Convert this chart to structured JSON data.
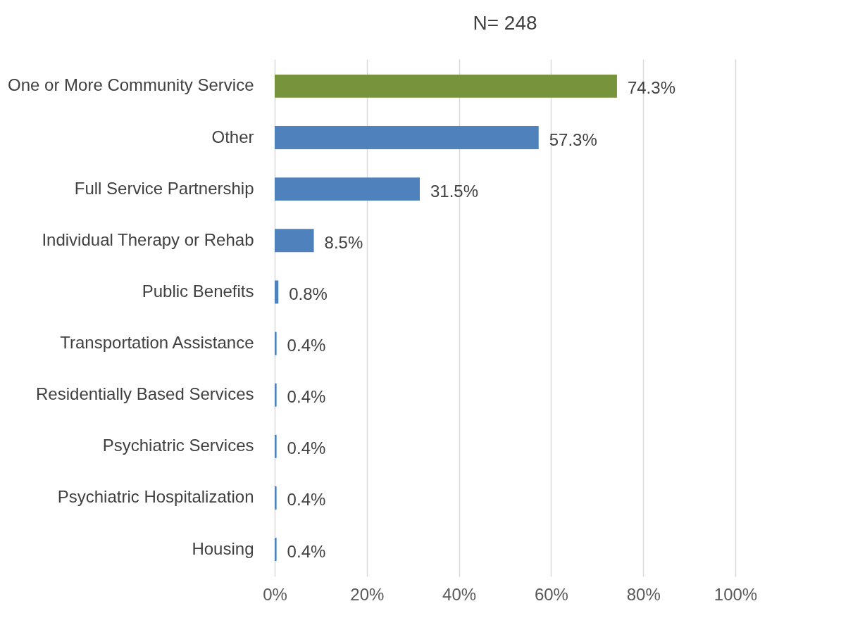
{
  "chart_data": {
    "type": "bar",
    "orientation": "horizontal",
    "title": "N= 248",
    "categories": [
      "One or More Community Service",
      "Other",
      "Full Service Partnership",
      "Individual Therapy or Rehab",
      "Public Benefits",
      "Transportation Assistance",
      "Residentially Based Services",
      "Psychiatric Services",
      "Psychiatric Hospitalization",
      "Housing"
    ],
    "values": [
      74.3,
      57.3,
      31.5,
      8.5,
      0.8,
      0.4,
      0.4,
      0.4,
      0.4,
      0.4
    ],
    "value_labels": [
      "74.3%",
      "57.3%",
      "31.5%",
      "8.5%",
      "0.8%",
      "0.4%",
      "0.4%",
      "0.4%",
      "0.4%",
      "0.4%"
    ],
    "colors": [
      "#77933c",
      "#4f81bd",
      "#4f81bd",
      "#4f81bd",
      "#4f81bd",
      "#4f81bd",
      "#4f81bd",
      "#4f81bd",
      "#4f81bd",
      "#4f81bd"
    ],
    "xlim": [
      0,
      100
    ],
    "xticks": [
      {
        "value": 0,
        "label": "0%"
      },
      {
        "value": 20,
        "label": "20%"
      },
      {
        "value": 40,
        "label": "40%"
      },
      {
        "value": 60,
        "label": "60%"
      },
      {
        "value": 80,
        "label": "80%"
      },
      {
        "value": 100,
        "label": "100%"
      }
    ],
    "grid": "x"
  }
}
